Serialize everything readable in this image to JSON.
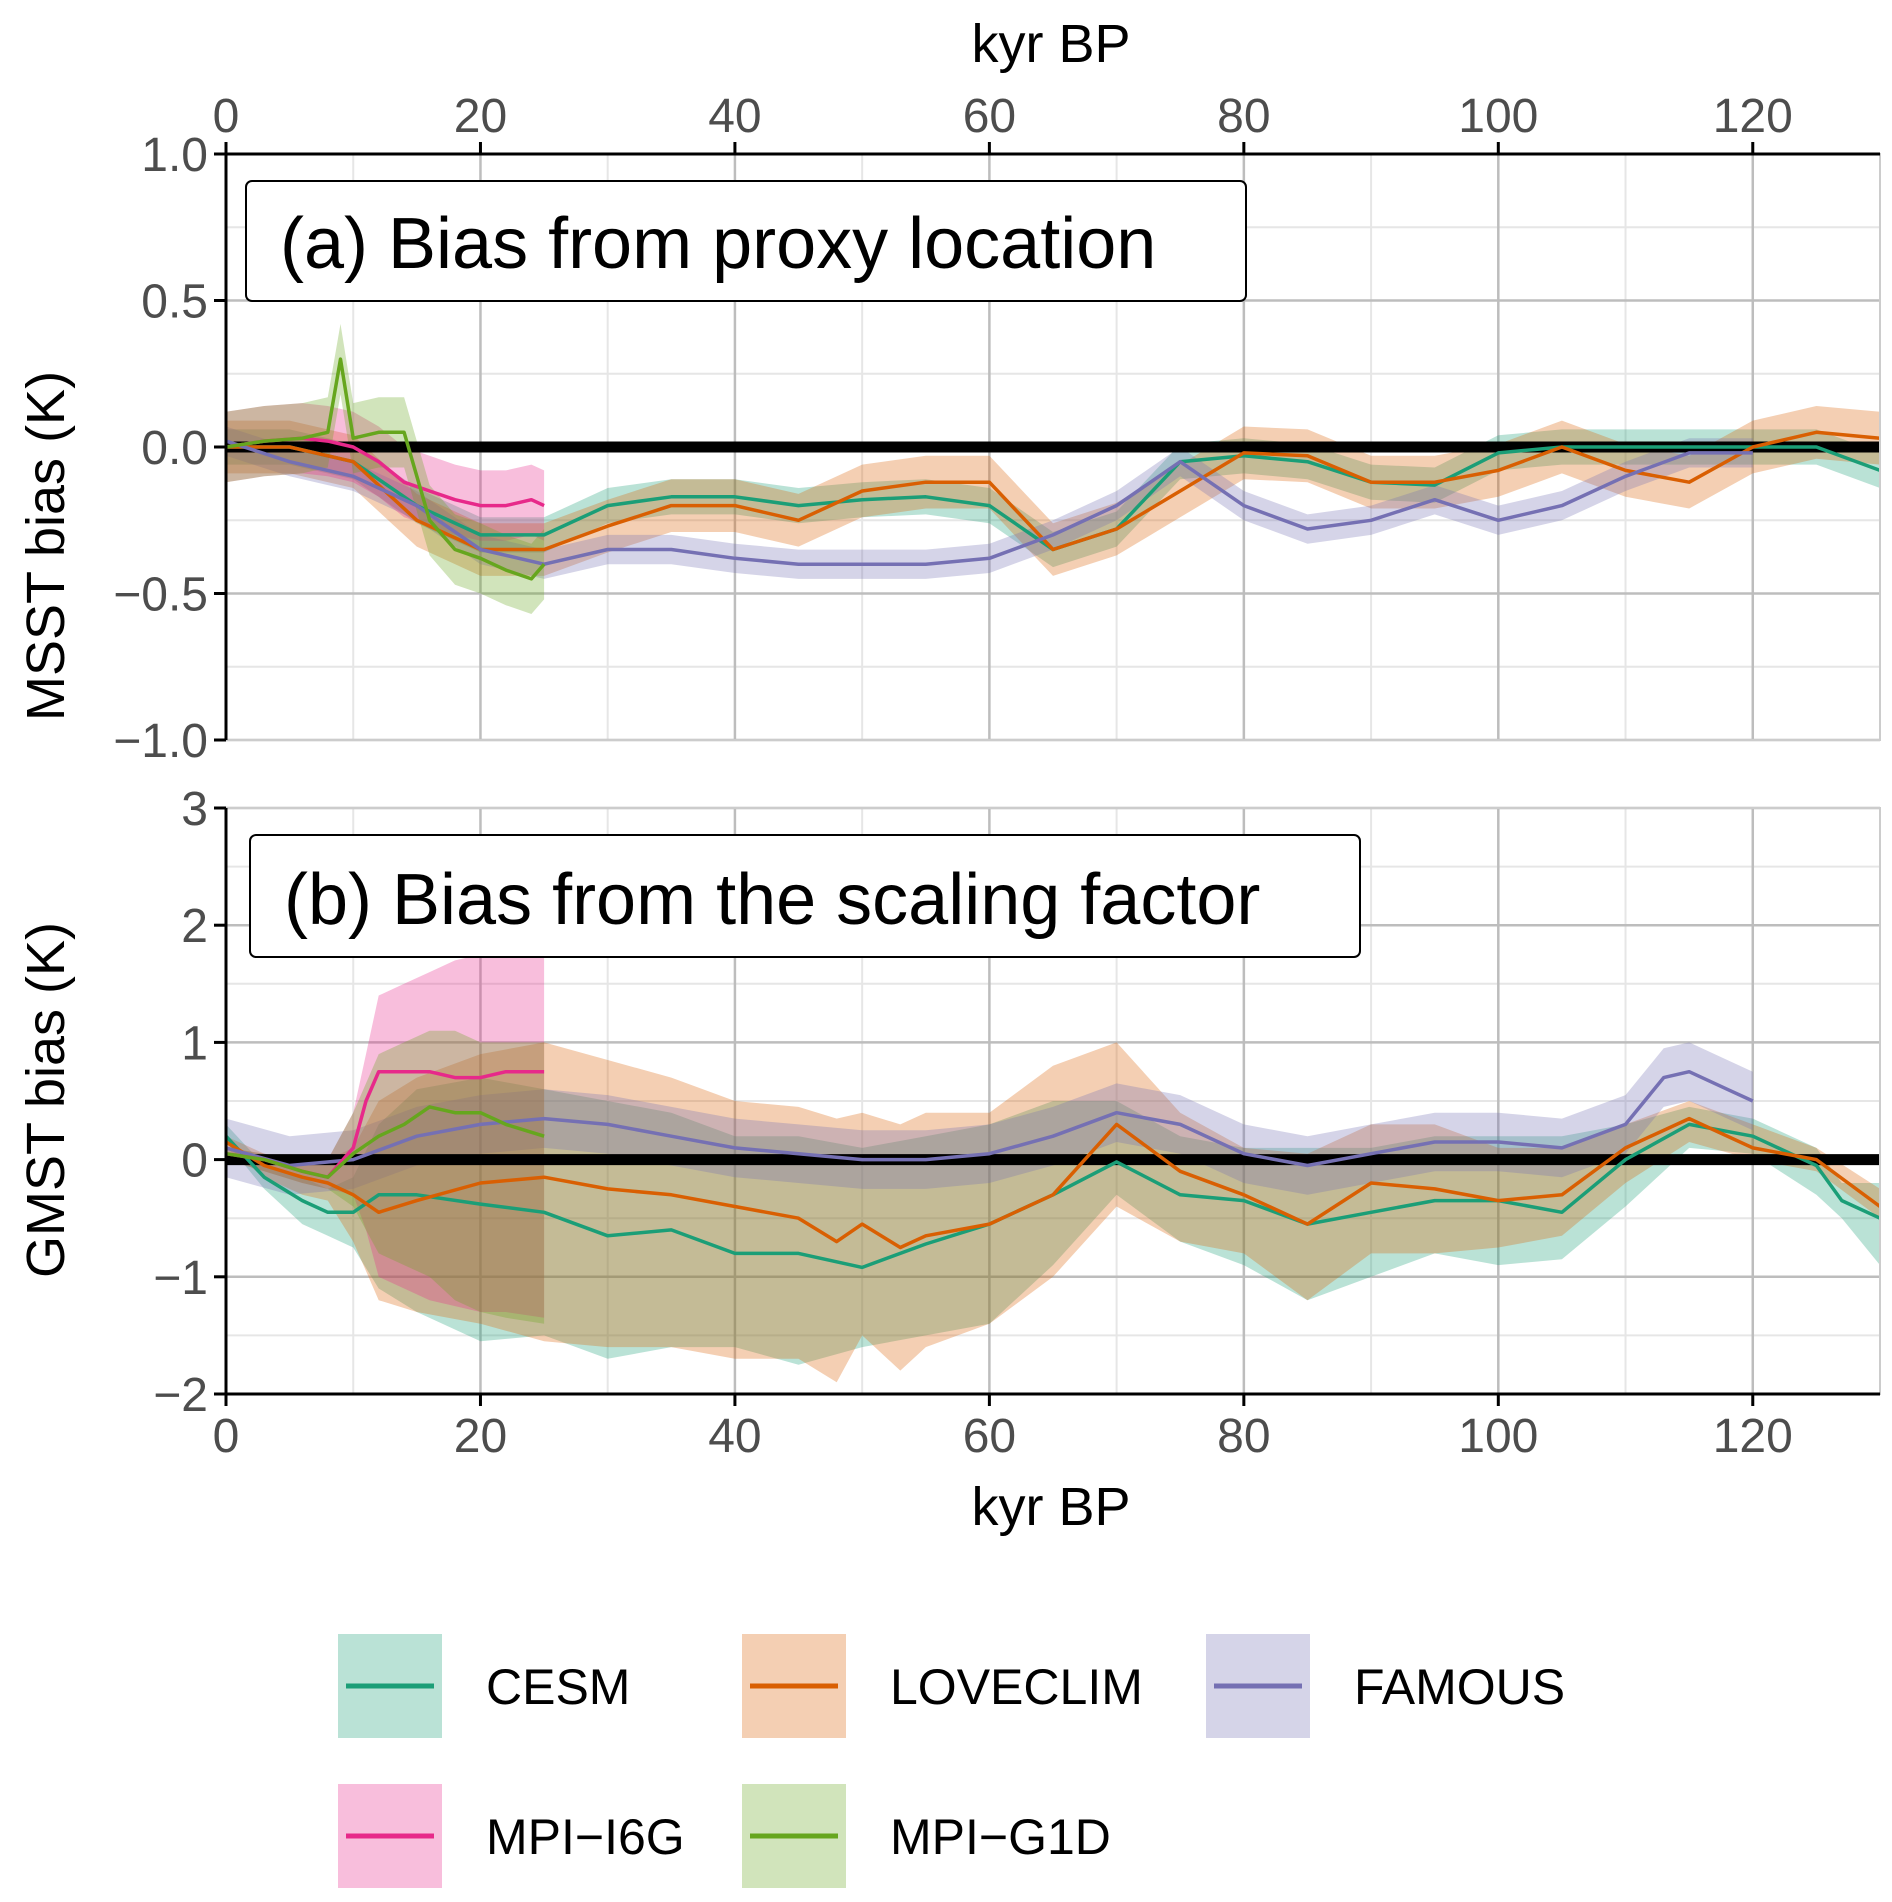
{
  "figure": {
    "top_axis_label": "kyr BP",
    "bottom_axis_label": "kyr BP",
    "x_ticks": [
      "0",
      "20",
      "40",
      "60",
      "80",
      "100",
      "120"
    ]
  },
  "colors": {
    "CESM": "#1b9e77",
    "LOVECLIM": "#d95f02",
    "FAMOUS": "#7570b3",
    "MPI-I6G": "#e7298a",
    "MPI-G1D": "#66a61e",
    "reference": "#000000",
    "grid_major": "#bdbdbd",
    "grid_minor": "#e6e6e6"
  },
  "legend": {
    "items": [
      {
        "label": "CESM",
        "key": "CESM"
      },
      {
        "label": "LOVECLIM",
        "key": "LOVECLIM"
      },
      {
        "label": "FAMOUS",
        "key": "FAMOUS"
      },
      {
        "label": "MPI−I6G",
        "key": "MPI-I6G"
      },
      {
        "label": "MPI−G1D",
        "key": "MPI-G1D"
      }
    ]
  },
  "chart_data": [
    {
      "type": "line",
      "title": "(a) Bias from proxy location",
      "xlabel": "kyr BP",
      "ylabel": "MSST bias (K)",
      "xlim": [
        0,
        130
      ],
      "ylim": [
        -1.0,
        1.0
      ],
      "x_ticks": [
        0,
        20,
        40,
        60,
        80,
        100,
        120
      ],
      "y_ticks": [
        -1.0,
        -0.5,
        0.0,
        0.5,
        1.0
      ],
      "y_tick_labels": [
        "−1.0",
        "−0.5",
        "0.0",
        "0.5",
        "1.0"
      ],
      "grid": true,
      "reference_line": 0,
      "series": [
        {
          "name": "CESM",
          "x": [
            0,
            5,
            10,
            15,
            20,
            25,
            30,
            35,
            40,
            45,
            50,
            55,
            60,
            65,
            70,
            75,
            80,
            85,
            90,
            95,
            100,
            105,
            110,
            115,
            120,
            125,
            130
          ],
          "y": [
            0.0,
            0.0,
            -0.05,
            -0.2,
            -0.3,
            -0.3,
            -0.2,
            -0.17,
            -0.17,
            -0.2,
            -0.18,
            -0.17,
            -0.2,
            -0.35,
            -0.28,
            -0.05,
            -0.03,
            -0.05,
            -0.12,
            -0.13,
            -0.02,
            0.0,
            0.0,
            0.0,
            0.0,
            0.0,
            -0.08
          ],
          "band": 0.06
        },
        {
          "name": "LOVECLIM",
          "x": [
            0,
            5,
            10,
            15,
            20,
            25,
            30,
            35,
            40,
            45,
            50,
            55,
            60,
            65,
            70,
            75,
            80,
            85,
            90,
            95,
            100,
            105,
            110,
            115,
            120,
            125,
            130
          ],
          "y": [
            0.0,
            0.0,
            -0.05,
            -0.25,
            -0.35,
            -0.35,
            -0.27,
            -0.2,
            -0.2,
            -0.25,
            -0.15,
            -0.12,
            -0.12,
            -0.35,
            -0.28,
            -0.15,
            -0.02,
            -0.03,
            -0.12,
            -0.12,
            -0.08,
            0.0,
            -0.08,
            -0.12,
            0.0,
            0.05,
            0.03
          ],
          "band": 0.09
        },
        {
          "name": "FAMOUS",
          "x": [
            0,
            5,
            10,
            15,
            20,
            25,
            30,
            35,
            40,
            45,
            50,
            55,
            60,
            65,
            70,
            75,
            80,
            85,
            90,
            95,
            100,
            105,
            110,
            115,
            120
          ],
          "y": [
            0.02,
            -0.05,
            -0.1,
            -0.2,
            -0.35,
            -0.4,
            -0.35,
            -0.35,
            -0.38,
            -0.4,
            -0.4,
            -0.4,
            -0.38,
            -0.3,
            -0.2,
            -0.05,
            -0.2,
            -0.28,
            -0.25,
            -0.18,
            -0.25,
            -0.2,
            -0.1,
            -0.02,
            -0.02
          ],
          "band": 0.05
        },
        {
          "name": "MPI-I6G",
          "x": [
            0,
            3,
            6,
            8,
            10,
            12,
            14,
            16,
            18,
            20,
            22,
            24,
            25
          ],
          "y": [
            0.0,
            0.02,
            0.03,
            0.02,
            0.0,
            -0.05,
            -0.12,
            -0.15,
            -0.18,
            -0.2,
            -0.2,
            -0.18,
            -0.2
          ],
          "band": 0.12
        },
        {
          "name": "MPI-G1D",
          "x": [
            0,
            3,
            6,
            8,
            9,
            10,
            12,
            14,
            16,
            18,
            20,
            22,
            24,
            25
          ],
          "y": [
            0.0,
            0.02,
            0.03,
            0.05,
            0.3,
            0.03,
            0.05,
            0.05,
            -0.25,
            -0.35,
            -0.38,
            -0.42,
            -0.45,
            -0.4
          ],
          "band": 0.12
        }
      ]
    },
    {
      "type": "line",
      "title": "(b) Bias from the scaling factor",
      "xlabel": "kyr BP",
      "ylabel": "GMST bias (K)",
      "xlim": [
        0,
        130
      ],
      "ylim": [
        -2,
        3
      ],
      "x_ticks": [
        0,
        20,
        40,
        60,
        80,
        100,
        120
      ],
      "y_ticks": [
        -2,
        -1,
        0,
        1,
        2,
        3
      ],
      "y_tick_labels": [
        "−2",
        "−1",
        "0",
        "1",
        "2",
        "3"
      ],
      "grid": true,
      "reference_line": 0,
      "series": [
        {
          "name": "CESM",
          "x": [
            0,
            3,
            6,
            8,
            10,
            12,
            15,
            20,
            25,
            30,
            35,
            40,
            45,
            50,
            55,
            60,
            65,
            70,
            75,
            80,
            85,
            90,
            95,
            100,
            105,
            110,
            115,
            120,
            125,
            127,
            130
          ],
          "y": [
            0.2,
            -0.15,
            -0.35,
            -0.45,
            -0.45,
            -0.3,
            -0.3,
            -0.38,
            -0.45,
            -0.65,
            -0.6,
            -0.8,
            -0.8,
            -0.92,
            -0.72,
            -0.55,
            -0.3,
            -0.02,
            -0.3,
            -0.35,
            -0.55,
            -0.45,
            -0.35,
            -0.35,
            -0.45,
            0.0,
            0.3,
            0.2,
            -0.05,
            -0.35,
            -0.5
          ],
          "lower": [
            0.15,
            -0.25,
            -0.55,
            -0.65,
            -0.75,
            -1.1,
            -1.3,
            -1.55,
            -1.5,
            -1.7,
            -1.6,
            -1.6,
            -1.75,
            -1.6,
            -1.5,
            -1.4,
            -0.9,
            -0.3,
            -0.7,
            -0.9,
            -1.2,
            -1.0,
            -0.8,
            -0.9,
            -0.85,
            -0.4,
            0.1,
            0.05,
            -0.3,
            -0.5,
            -0.9
          ],
          "upper": [
            0.3,
            -0.05,
            -0.15,
            -0.25,
            -0.15,
            0.3,
            0.6,
            0.7,
            0.6,
            0.5,
            0.4,
            0.2,
            0.2,
            0.1,
            0.2,
            0.3,
            0.5,
            0.5,
            0.2,
            0.1,
            0.1,
            0.1,
            0.2,
            0.2,
            0.2,
            0.3,
            0.45,
            0.35,
            0.1,
            -0.2,
            -0.2
          ]
        },
        {
          "name": "LOVECLIM",
          "x": [
            0,
            3,
            6,
            8,
            10,
            12,
            15,
            20,
            25,
            30,
            35,
            40,
            45,
            48,
            50,
            53,
            55,
            60,
            65,
            70,
            75,
            80,
            85,
            90,
            95,
            100,
            105,
            110,
            115,
            120,
            125,
            130
          ],
          "y": [
            0.15,
            -0.05,
            -0.15,
            -0.2,
            -0.3,
            -0.45,
            -0.35,
            -0.2,
            -0.15,
            -0.25,
            -0.3,
            -0.4,
            -0.5,
            -0.7,
            -0.55,
            -0.75,
            -0.65,
            -0.55,
            -0.3,
            0.3,
            -0.1,
            -0.3,
            -0.55,
            -0.2,
            -0.25,
            -0.35,
            -0.3,
            0.1,
            0.35,
            0.1,
            0.0,
            -0.4
          ],
          "lower": [
            0.1,
            -0.15,
            -0.3,
            -0.35,
            -0.7,
            -1.2,
            -1.3,
            -1.4,
            -1.55,
            -1.6,
            -1.6,
            -1.7,
            -1.7,
            -1.9,
            -1.5,
            -1.8,
            -1.6,
            -1.4,
            -1.0,
            -0.4,
            -0.7,
            -0.8,
            -1.2,
            -0.8,
            -0.8,
            -0.75,
            -0.65,
            -0.2,
            0.15,
            0.0,
            -0.1,
            -0.5
          ],
          "upper": [
            0.2,
            0.05,
            0.0,
            0.0,
            0.1,
            0.5,
            0.7,
            0.9,
            1.0,
            0.85,
            0.7,
            0.5,
            0.45,
            0.35,
            0.4,
            0.3,
            0.4,
            0.4,
            0.8,
            1.0,
            0.4,
            0.1,
            0.05,
            0.3,
            0.3,
            0.1,
            0.1,
            0.3,
            0.5,
            0.3,
            0.1,
            -0.25
          ]
        },
        {
          "name": "FAMOUS",
          "x": [
            0,
            5,
            10,
            15,
            20,
            25,
            30,
            35,
            40,
            45,
            50,
            55,
            60,
            65,
            70,
            75,
            80,
            85,
            90,
            95,
            100,
            105,
            110,
            113,
            115,
            118,
            120
          ],
          "y": [
            0.1,
            -0.05,
            0.0,
            0.2,
            0.3,
            0.35,
            0.3,
            0.2,
            0.1,
            0.05,
            0.0,
            0.0,
            0.05,
            0.2,
            0.4,
            0.3,
            0.05,
            -0.05,
            0.05,
            0.15,
            0.15,
            0.1,
            0.3,
            0.7,
            0.75,
            0.6,
            0.5
          ],
          "band": 0.25
        },
        {
          "name": "MPI-I6G",
          "x": [
            0,
            3,
            6,
            8,
            10,
            11,
            12,
            14,
            16,
            18,
            20,
            22,
            25
          ],
          "y": [
            0.05,
            0.0,
            -0.1,
            -0.15,
            0.1,
            0.5,
            0.75,
            0.75,
            0.75,
            0.7,
            0.7,
            0.75,
            0.75
          ],
          "lower": [
            0.0,
            -0.1,
            -0.2,
            -0.25,
            -0.3,
            -0.6,
            -1.0,
            -1.1,
            -1.2,
            -1.25,
            -1.3,
            -1.3,
            -1.35
          ],
          "upper": [
            0.1,
            0.05,
            0.0,
            0.0,
            0.4,
            0.9,
            1.4,
            1.5,
            1.6,
            1.7,
            1.75,
            1.8,
            1.85
          ]
        },
        {
          "name": "MPI-G1D",
          "x": [
            0,
            3,
            6,
            8,
            10,
            12,
            14,
            16,
            18,
            20,
            22,
            25
          ],
          "y": [
            0.05,
            0.0,
            -0.1,
            -0.15,
            0.05,
            0.2,
            0.3,
            0.45,
            0.4,
            0.4,
            0.3,
            0.2
          ],
          "lower": [
            0.0,
            -0.1,
            -0.2,
            -0.25,
            -0.4,
            -0.8,
            -0.9,
            -1.0,
            -1.2,
            -1.3,
            -1.35,
            -1.4
          ],
          "upper": [
            0.1,
            0.05,
            0.0,
            0.0,
            0.4,
            0.9,
            1.0,
            1.1,
            1.1,
            1.0,
            1.0,
            1.0
          ]
        }
      ]
    }
  ]
}
